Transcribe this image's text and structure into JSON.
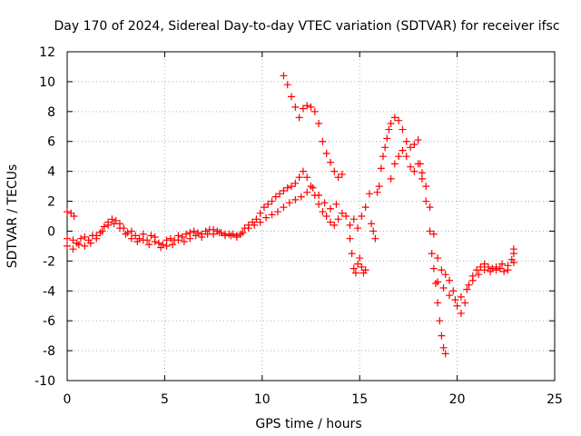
{
  "chart_data": {
    "type": "scatter",
    "title": "Day 170 of 2024, Sidereal Day-to-day VTEC variation (SDTVAR) for receiver ifsc",
    "xlabel": "GPS time / hours",
    "ylabel": "SDTVAR / TECUs",
    "xlim": [
      0,
      25
    ],
    "ylim": [
      -10,
      12
    ],
    "xticks": [
      "0",
      "5",
      "10",
      "15",
      "20",
      "25"
    ],
    "yticks": [
      "-10",
      "-8",
      "-6",
      "-4",
      "-2",
      "0",
      "2",
      "4",
      "6",
      "8",
      "10",
      "12"
    ],
    "grid": true,
    "marker": "+",
    "color": "#ff0000",
    "series": [
      {
        "points": [
          [
            0.0,
            1.3
          ],
          [
            0.2,
            1.2
          ],
          [
            0.35,
            1.0
          ],
          [
            0.0,
            -1.0
          ],
          [
            0.3,
            -1.2
          ],
          [
            0.5,
            -0.8
          ],
          [
            0.7,
            -0.5
          ],
          [
            0.9,
            -1.0
          ],
          [
            1.1,
            -0.6
          ],
          [
            1.3,
            -0.3
          ],
          [
            1.5,
            -0.5
          ],
          [
            1.7,
            -0.1
          ],
          [
            1.9,
            0.3
          ],
          [
            2.1,
            0.6
          ],
          [
            2.3,
            0.8
          ],
          [
            2.5,
            0.7
          ],
          [
            2.7,
            0.5
          ],
          [
            2.9,
            0.2
          ],
          [
            3.1,
            -0.1
          ],
          [
            3.3,
            0.0
          ],
          [
            3.5,
            -0.3
          ],
          [
            3.7,
            -0.5
          ],
          [
            3.9,
            -0.2
          ],
          [
            4.1,
            -0.6
          ],
          [
            4.3,
            -0.3
          ],
          [
            4.5,
            -0.4
          ],
          [
            4.7,
            -0.8
          ],
          [
            4.9,
            -0.9
          ],
          [
            5.1,
            -0.6
          ],
          [
            5.3,
            -0.5
          ],
          [
            5.5,
            -0.6
          ],
          [
            5.7,
            -0.3
          ],
          [
            5.9,
            -0.4
          ],
          [
            6.1,
            -0.2
          ],
          [
            6.3,
            -0.1
          ],
          [
            6.5,
            0.0
          ],
          [
            6.7,
            -0.1
          ],
          [
            6.9,
            -0.2
          ],
          [
            7.1,
            0.0
          ],
          [
            7.3,
            0.1
          ],
          [
            7.5,
            0.1
          ],
          [
            7.7,
            0.0
          ],
          [
            7.9,
            -0.1
          ],
          [
            8.1,
            -0.2
          ],
          [
            8.3,
            -0.2
          ],
          [
            8.5,
            -0.2
          ],
          [
            8.7,
            -0.3
          ],
          [
            8.9,
            -0.2
          ],
          [
            9.1,
            0.2
          ],
          [
            9.3,
            0.4
          ],
          [
            9.5,
            0.6
          ],
          [
            9.7,
            0.8
          ],
          [
            9.9,
            1.2
          ],
          [
            10.1,
            1.6
          ],
          [
            10.3,
            1.8
          ],
          [
            10.5,
            2.0
          ],
          [
            10.7,
            2.3
          ],
          [
            10.9,
            2.5
          ],
          [
            11.1,
            2.7
          ],
          [
            11.3,
            2.9
          ],
          [
            11.5,
            3.0
          ],
          [
            11.7,
            3.2
          ],
          [
            11.9,
            3.6
          ],
          [
            12.1,
            4.0
          ],
          [
            12.3,
            3.6
          ],
          [
            12.5,
            3.0
          ],
          [
            12.7,
            2.4
          ],
          [
            12.9,
            1.8
          ],
          [
            13.1,
            1.3
          ],
          [
            13.3,
            1.0
          ],
          [
            13.5,
            0.6
          ],
          [
            13.7,
            0.4
          ],
          [
            13.9,
            0.8
          ],
          [
            14.1,
            1.2
          ],
          [
            0.0,
            -0.5
          ],
          [
            0.3,
            -0.6
          ],
          [
            0.6,
            -0.9
          ],
          [
            0.9,
            -0.4
          ],
          [
            1.2,
            -0.8
          ],
          [
            1.5,
            -0.3
          ],
          [
            1.8,
            0.0
          ],
          [
            2.1,
            0.4
          ],
          [
            2.4,
            0.5
          ],
          [
            2.7,
            0.2
          ],
          [
            3.0,
            -0.2
          ],
          [
            3.3,
            -0.5
          ],
          [
            3.6,
            -0.7
          ],
          [
            3.9,
            -0.6
          ],
          [
            4.2,
            -0.9
          ],
          [
            4.5,
            -0.7
          ],
          [
            4.8,
            -1.1
          ],
          [
            5.1,
            -1.0
          ],
          [
            5.4,
            -0.9
          ],
          [
            5.7,
            -0.6
          ],
          [
            6.0,
            -0.7
          ],
          [
            6.3,
            -0.5
          ],
          [
            6.6,
            -0.3
          ],
          [
            6.9,
            -0.4
          ],
          [
            7.2,
            -0.2
          ],
          [
            7.5,
            -0.2
          ],
          [
            7.8,
            -0.1
          ],
          [
            8.1,
            -0.3
          ],
          [
            8.4,
            -0.3
          ],
          [
            8.7,
            -0.4
          ],
          [
            9.0,
            -0.1
          ],
          [
            9.3,
            0.2
          ],
          [
            9.6,
            0.4
          ],
          [
            9.9,
            0.6
          ],
          [
            10.2,
            0.9
          ],
          [
            10.5,
            1.1
          ],
          [
            10.8,
            1.3
          ],
          [
            11.1,
            1.6
          ],
          [
            11.4,
            1.9
          ],
          [
            11.7,
            2.1
          ],
          [
            12.0,
            2.3
          ],
          [
            12.3,
            2.6
          ],
          [
            12.6,
            2.9
          ],
          [
            12.9,
            2.4
          ],
          [
            13.2,
            1.9
          ],
          [
            13.5,
            1.5
          ],
          [
            13.8,
            1.8
          ],
          [
            11.1,
            10.4
          ],
          [
            11.3,
            9.8
          ],
          [
            11.5,
            9.0
          ],
          [
            11.7,
            8.3
          ],
          [
            11.9,
            7.6
          ],
          [
            12.1,
            8.2
          ],
          [
            12.3,
            8.4
          ],
          [
            12.5,
            8.3
          ],
          [
            12.7,
            8.0
          ],
          [
            12.9,
            7.2
          ],
          [
            13.1,
            6.0
          ],
          [
            13.3,
            5.2
          ],
          [
            13.5,
            4.6
          ],
          [
            13.7,
            4.0
          ],
          [
            13.9,
            3.6
          ],
          [
            14.1,
            3.8
          ],
          [
            14.3,
            1.0
          ],
          [
            14.5,
            -0.5
          ],
          [
            14.6,
            -1.5
          ],
          [
            14.7,
            -2.5
          ],
          [
            14.8,
            -2.8
          ],
          [
            14.9,
            -2.2
          ],
          [
            15.0,
            -1.8
          ],
          [
            15.1,
            -2.4
          ],
          [
            15.2,
            -2.8
          ],
          [
            15.3,
            -2.6
          ],
          [
            14.5,
            0.4
          ],
          [
            14.7,
            0.8
          ],
          [
            14.9,
            0.2
          ],
          [
            15.1,
            1.0
          ],
          [
            15.3,
            1.6
          ],
          [
            15.5,
            2.5
          ],
          [
            15.6,
            0.5
          ],
          [
            15.7,
            0.0
          ],
          [
            15.8,
            -0.5
          ],
          [
            15.9,
            2.6
          ],
          [
            16.0,
            3.0
          ],
          [
            16.1,
            4.2
          ],
          [
            16.2,
            5.0
          ],
          [
            16.3,
            5.6
          ],
          [
            16.4,
            6.2
          ],
          [
            16.5,
            6.8
          ],
          [
            16.6,
            7.2
          ],
          [
            16.8,
            7.6
          ],
          [
            17.0,
            7.4
          ],
          [
            17.2,
            6.8
          ],
          [
            17.4,
            6.0
          ],
          [
            17.6,
            5.6
          ],
          [
            17.8,
            5.8
          ],
          [
            18.0,
            6.1
          ],
          [
            18.1,
            4.5
          ],
          [
            18.2,
            3.5
          ],
          [
            18.4,
            2.0
          ],
          [
            18.6,
            0.0
          ],
          [
            18.7,
            -1.5
          ],
          [
            18.8,
            -2.5
          ],
          [
            18.9,
            -3.5
          ],
          [
            19.0,
            -4.8
          ],
          [
            19.1,
            -6.0
          ],
          [
            19.2,
            -7.0
          ],
          [
            19.3,
            -7.8
          ],
          [
            19.4,
            -8.2
          ],
          [
            16.6,
            3.5
          ],
          [
            16.8,
            4.5
          ],
          [
            17.0,
            5.0
          ],
          [
            17.2,
            5.4
          ],
          [
            17.4,
            5.0
          ],
          [
            17.6,
            4.3
          ],
          [
            17.8,
            4.0
          ],
          [
            18.0,
            4.5
          ],
          [
            18.2,
            3.9
          ],
          [
            18.4,
            3.0
          ],
          [
            18.6,
            1.6
          ],
          [
            18.8,
            -0.2
          ],
          [
            19.0,
            -1.8
          ],
          [
            19.2,
            -2.6
          ],
          [
            19.4,
            -2.9
          ],
          [
            19.6,
            -3.3
          ],
          [
            19.8,
            -4.0
          ],
          [
            20.0,
            -5.0
          ],
          [
            20.2,
            -5.5
          ],
          [
            20.4,
            -4.8
          ],
          [
            20.6,
            -3.6
          ],
          [
            20.8,
            -3.0
          ],
          [
            21.0,
            -2.6
          ],
          [
            21.2,
            -2.4
          ],
          [
            21.4,
            -2.2
          ],
          [
            21.6,
            -2.4
          ],
          [
            21.8,
            -2.5
          ],
          [
            22.0,
            -2.6
          ],
          [
            22.2,
            -2.5
          ],
          [
            22.4,
            -2.7
          ],
          [
            22.6,
            -2.3
          ],
          [
            22.8,
            -1.9
          ],
          [
            22.9,
            -1.5
          ],
          [
            19.0,
            -3.4
          ],
          [
            19.3,
            -3.8
          ],
          [
            19.6,
            -4.3
          ],
          [
            19.9,
            -4.6
          ],
          [
            20.2,
            -4.4
          ],
          [
            20.5,
            -3.9
          ],
          [
            20.8,
            -3.3
          ],
          [
            21.1,
            -2.9
          ],
          [
            21.4,
            -2.6
          ],
          [
            21.7,
            -2.7
          ],
          [
            22.0,
            -2.4
          ],
          [
            22.3,
            -2.2
          ],
          [
            22.6,
            -2.6
          ],
          [
            22.9,
            -2.1
          ],
          [
            22.9,
            -1.2
          ]
        ]
      }
    ]
  }
}
